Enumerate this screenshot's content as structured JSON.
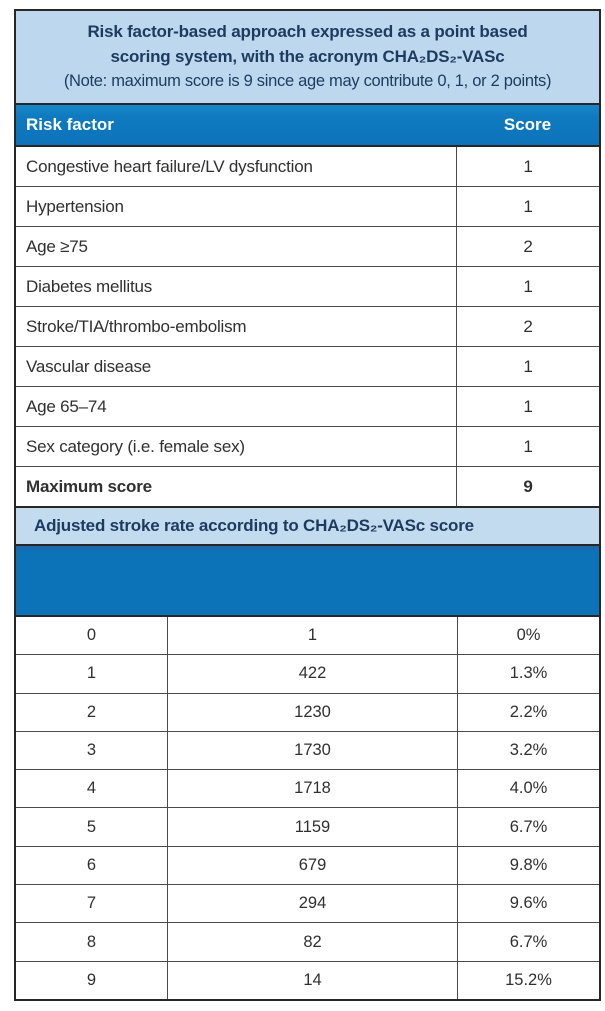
{
  "title_box": {
    "line1": "Risk factor-based approach expressed as a point based",
    "line2": "scoring system, with the acronym CHA₂DS₂-VASc",
    "note": "(Note: maximum score is 9 since age may contribute 0, 1, or 2 points)"
  },
  "risk_table": {
    "header": {
      "factor": "Risk factor",
      "score": "Score"
    },
    "rows": [
      {
        "label": "Congestive heart failure/LV dysfunction",
        "score": "1"
      },
      {
        "label": "Hypertension",
        "score": "1"
      },
      {
        "label": "Age ≥75",
        "score": "2"
      },
      {
        "label": "Diabetes mellitus",
        "score": "1"
      },
      {
        "label": "Stroke/TIA/thrombo-embolism",
        "score": "2"
      },
      {
        "label": "Vascular disease",
        "score": "1"
      },
      {
        "label": "Age 65–74",
        "score": "1"
      },
      {
        "label": "Sex category (i.e. female sex)",
        "score": "1"
      }
    ],
    "footer": {
      "label": "Maximum score",
      "score": "9"
    }
  },
  "stroke_section": {
    "title": "Adjusted stroke rate according to CHA₂DS₂-VASc score",
    "rows": [
      {
        "score": "0",
        "patients": "1",
        "rate": "0%"
      },
      {
        "score": "1",
        "patients": "422",
        "rate": "1.3%"
      },
      {
        "score": "2",
        "patients": "1230",
        "rate": "2.2%"
      },
      {
        "score": "3",
        "patients": "1730",
        "rate": "3.2%"
      },
      {
        "score": "4",
        "patients": "1718",
        "rate": "4.0%"
      },
      {
        "score": "5",
        "patients": "1159",
        "rate": "6.7%"
      },
      {
        "score": "6",
        "patients": "679",
        "rate": "9.8%"
      },
      {
        "score": "7",
        "patients": "294",
        "rate": "9.6%"
      },
      {
        "score": "8",
        "patients": "82",
        "rate": "6.7%"
      },
      {
        "score": "9",
        "patients": "14",
        "rate": "15.2%"
      }
    ]
  },
  "colors": {
    "header_blue": "#0f7abf",
    "band_blue": "#0d73b9",
    "light_blue": "#bdd8ee",
    "navy_text": "#1d3a5f",
    "body_text": "#303030",
    "border_dark": "#272727"
  }
}
